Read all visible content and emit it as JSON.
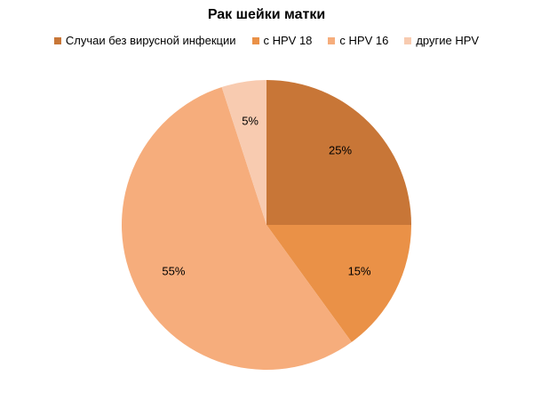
{
  "chart_data": {
    "type": "pie",
    "title": "Рак шейки матки",
    "legend_position": "top",
    "start_angle_deg": 0,
    "direction": "clockwise",
    "slices": [
      {
        "name": "Случаи без вирусной инфекции",
        "value": 25,
        "label": "25%",
        "color": "#C87637"
      },
      {
        "name": "с HPV 18",
        "value": 15,
        "label": "15%",
        "color": "#EA9147"
      },
      {
        "name": "с HPV 16",
        "value": 55,
        "label": "55%",
        "color": "#F6AD7C"
      },
      {
        "name": "другие HPV",
        "value": 5,
        "label": "5%",
        "color": "#F8CBB0"
      }
    ]
  }
}
